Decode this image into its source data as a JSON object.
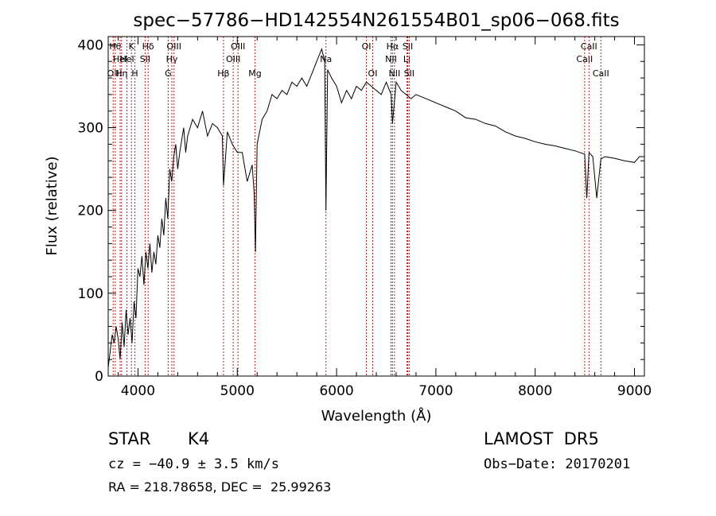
{
  "chart_data": {
    "type": "line",
    "title": "spec−57786−HD142554N261554B01_sp06−068.fits",
    "xlabel": "Wavelength (Å)",
    "ylabel": "Flux (relative)",
    "xlim": [
      3700,
      9100
    ],
    "ylim": [
      0,
      410
    ],
    "x_ticks": [
      4000,
      5000,
      6000,
      7000,
      8000,
      9000
    ],
    "y_ticks": [
      0,
      100,
      200,
      300,
      400
    ],
    "grid": false,
    "series": [
      {
        "x": [
          3700,
          3720,
          3740,
          3760,
          3780,
          3800,
          3820,
          3840,
          3860,
          3880,
          3900,
          3920,
          3940,
          3960,
          3980,
          4000,
          4020,
          4040,
          4060,
          4080,
          4100,
          4120,
          4140,
          4160,
          4180,
          4200,
          4220,
          4240,
          4260,
          4280,
          4300,
          4320,
          4340,
          4360,
          4380,
          4400,
          4420,
          4440,
          4460,
          4480,
          4500,
          4550,
          4600,
          4650,
          4700,
          4750,
          4800,
          4850,
          4861,
          4900,
          4950,
          5000,
          5050,
          5100,
          5150,
          5170,
          5183,
          5200,
          5250,
          5300,
          5350,
          5400,
          5450,
          5500,
          5550,
          5600,
          5650,
          5700,
          5750,
          5800,
          5850,
          5880,
          5893,
          5910,
          5950,
          6000,
          6050,
          6100,
          6150,
          6200,
          6250,
          6300,
          6350,
          6400,
          6450,
          6500,
          6550,
          6563,
          6600,
          6650,
          6700,
          6750,
          6800,
          6900,
          7000,
          7100,
          7200,
          7300,
          7400,
          7500,
          7600,
          7700,
          7800,
          7900,
          8000,
          8100,
          8200,
          8300,
          8400,
          8450,
          8498,
          8520,
          8542,
          8580,
          8620,
          8662,
          8700,
          8800,
          8900,
          9000,
          9050,
          9100
        ],
        "values": [
          10,
          30,
          50,
          40,
          60,
          45,
          20,
          65,
          35,
          80,
          50,
          70,
          40,
          90,
          70,
          130,
          120,
          145,
          110,
          150,
          130,
          160,
          125,
          150,
          135,
          170,
          155,
          190,
          170,
          215,
          190,
          250,
          235,
          265,
          280,
          250,
          270,
          285,
          300,
          270,
          290,
          310,
          300,
          320,
          290,
          305,
          300,
          290,
          230,
          295,
          280,
          270,
          270,
          235,
          255,
          220,
          150,
          280,
          310,
          320,
          340,
          335,
          345,
          340,
          355,
          350,
          360,
          350,
          365,
          380,
          395,
          380,
          200,
          370,
          360,
          350,
          330,
          345,
          335,
          350,
          345,
          355,
          350,
          345,
          340,
          355,
          340,
          305,
          355,
          345,
          340,
          335,
          340,
          335,
          330,
          325,
          320,
          312,
          310,
          305,
          302,
          295,
          290,
          287,
          283,
          280,
          278,
          275,
          272,
          270,
          268,
          215,
          270,
          265,
          215,
          262,
          265,
          263,
          260,
          258,
          265,
          265
        ]
      }
    ],
    "line_markers": [
      {
        "x": 3750,
        "label": "OII",
        "row": 3
      },
      {
        "x": 3771,
        "label": "Hθ",
        "row": 1
      },
      {
        "x": 3820,
        "label": "HeI",
        "row": 2
      },
      {
        "x": 3835,
        "label": "Hη",
        "row": 3
      },
      {
        "x": 3889,
        "label": "HeI",
        "row": 2
      },
      {
        "x": 3934,
        "label": "K",
        "row": 1
      },
      {
        "x": 3969,
        "label": "H",
        "row": 3
      },
      {
        "x": 4072,
        "label": "SII",
        "row": 2
      },
      {
        "x": 4102,
        "label": "Hδ",
        "row": 1
      },
      {
        "x": 4304,
        "label": "G",
        "row": 3
      },
      {
        "x": 4341,
        "label": "Hγ",
        "row": 2
      },
      {
        "x": 4363,
        "label": "OIII",
        "row": 1
      },
      {
        "x": 4861,
        "label": "Hβ",
        "row": 3
      },
      {
        "x": 4959,
        "label": "OIII",
        "row": 2
      },
      {
        "x": 5007,
        "label": "OIII",
        "row": 1
      },
      {
        "x": 5178,
        "label": "Mg",
        "row": 3
      },
      {
        "x": 5893,
        "label": "Na",
        "row": 2
      },
      {
        "x": 6300,
        "label": "OI",
        "row": 1
      },
      {
        "x": 6364,
        "label": "OI",
        "row": 3
      },
      {
        "x": 6548,
        "label": "NII",
        "row": 2
      },
      {
        "x": 6563,
        "label": "Hα",
        "row": 1
      },
      {
        "x": 6583,
        "label": "NII",
        "row": 3
      },
      {
        "x": 6708,
        "label": "Li",
        "row": 2
      },
      {
        "x": 6717,
        "label": "SII",
        "row": 1
      },
      {
        "x": 6731,
        "label": "SII",
        "row": 3
      },
      {
        "x": 8498,
        "label": "CaII",
        "row": 2
      },
      {
        "x": 8542,
        "label": "CaII",
        "row": 1
      },
      {
        "x": 8662,
        "label": "CaII",
        "row": 3
      }
    ]
  },
  "info": {
    "object_class": "STAR",
    "subclass": "K4",
    "survey": "LAMOST  DR5",
    "cz": "cz = −40.9 ± 3.5 km/s",
    "obs_date": "Obs−Date: 20170201",
    "coords": "RA = 218.78658, DEC =  25.99263"
  },
  "colors": {
    "spectrum": "#000000",
    "marker": "#b22222"
  }
}
